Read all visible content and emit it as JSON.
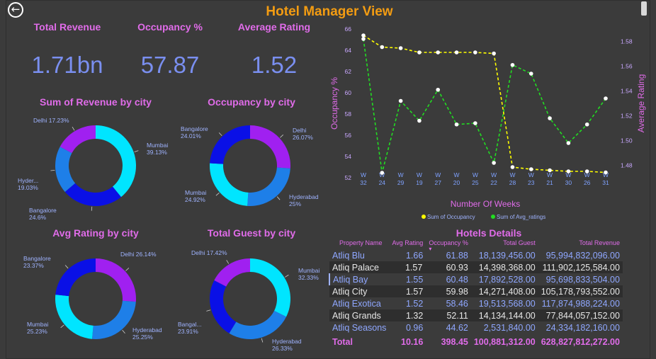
{
  "header": {
    "title": "Hotel Manager View",
    "back_icon": "back-arrow-icon"
  },
  "kpis": [
    {
      "label": "Total Revenue",
      "value": "1.71bn"
    },
    {
      "label": "Occupancy %",
      "value": "57.87"
    },
    {
      "label": "Average Rating",
      "value": "1.52"
    }
  ],
  "colors": {
    "Mumbai": "#00e5ff",
    "Delhi": "#a020f0",
    "Hyderabad": "#1e7fe8",
    "Bangalore": "#0a10e6",
    "occupancy_line": "#ffff00",
    "rating_line": "#22dd22"
  },
  "chart_data": [
    {
      "type": "pie",
      "donut": true,
      "title": "Sum of Revenue by city",
      "slices": [
        {
          "city": "Mumbai",
          "value": 39.13,
          "label_name": "Mumbai",
          "label_value": "39.13%"
        },
        {
          "city": "Bangalore",
          "value": 24.6,
          "label_name": "Bangalore",
          "label_value": "24.6%"
        },
        {
          "city": "Hyderabad",
          "value": 19.03,
          "label_name": "Hyder...",
          "label_value": "19.03%"
        },
        {
          "city": "Delhi",
          "value": 17.23,
          "label_name": "Delhi",
          "label_value": "17.23%"
        }
      ]
    },
    {
      "type": "pie",
      "donut": true,
      "title": "Occupancy by city",
      "slices": [
        {
          "city": "Delhi",
          "value": 26.07,
          "label_name": "Delhi",
          "label_value": "26.07%"
        },
        {
          "city": "Hyderabad",
          "value": 25,
          "label_name": "Hyderabad",
          "label_value": "25%"
        },
        {
          "city": "Mumbai",
          "value": 24.92,
          "label_name": "Mumbai",
          "label_value": "24.92%"
        },
        {
          "city": "Bangalore",
          "value": 24.01,
          "label_name": "Bangalore",
          "label_value": "24.01%"
        }
      ]
    },
    {
      "type": "pie",
      "donut": true,
      "title": "Avg Rating by city",
      "slices": [
        {
          "city": "Delhi",
          "value": 26.14,
          "label_name": "Delhi",
          "label_value": "26.14%"
        },
        {
          "city": "Hyderabad",
          "value": 25.25,
          "label_name": "Hyderabad",
          "label_value": "25.25%"
        },
        {
          "city": "Mumbai",
          "value": 25.23,
          "label_name": "Mumbai",
          "label_value": "25.23%"
        },
        {
          "city": "Bangalore",
          "value": 23.37,
          "label_name": "Bangalore",
          "label_value": "23.37%"
        }
      ]
    },
    {
      "type": "pie",
      "donut": true,
      "title": "Total Guest by city",
      "slices": [
        {
          "city": "Mumbai",
          "value": 32.33,
          "label_name": "Mumbai",
          "label_value": "32.33%"
        },
        {
          "city": "Hyderabad",
          "value": 26.33,
          "label_name": "Hyderabad",
          "label_value": "26.33%"
        },
        {
          "city": "Bangalore",
          "value": 23.91,
          "label_name": "Bangal...",
          "label_value": "23.91%"
        },
        {
          "city": "Delhi",
          "value": 17.42,
          "label_name": "Delhi",
          "label_value": "17.42%"
        }
      ]
    },
    {
      "type": "line",
      "xlabel": "Number Of Weeks",
      "ylabel": "Occupancy %",
      "y2label": "Average Rating",
      "categories": [
        "W 32",
        "W 24",
        "W 29",
        "W 19",
        "W 27",
        "W 20",
        "W 25",
        "W 22",
        "W 28",
        "W 23",
        "W 21",
        "W 30",
        "W 26",
        "W 31"
      ],
      "ylim": [
        52,
        66
      ],
      "yticks": [
        52,
        54,
        56,
        58,
        60,
        62,
        64,
        66
      ],
      "y2lim": [
        1.47,
        1.59
      ],
      "y2ticks": [
        1.48,
        1.5,
        1.52,
        1.54,
        1.56,
        1.58
      ],
      "series": [
        {
          "name": "Sum of Occupancy",
          "axis": "left",
          "values": [
            65.4,
            64.3,
            64.2,
            63.8,
            63.8,
            63.8,
            63.8,
            63.7,
            53.0,
            52.8,
            52.7,
            52.6,
            52.6,
            52.5
          ]
        },
        {
          "name": "Sum of Avg_ratings",
          "axis": "right",
          "values": [
            1.582,
            1.474,
            1.532,
            1.516,
            1.541,
            1.513,
            1.514,
            1.482,
            1.561,
            1.554,
            1.518,
            1.498,
            1.513,
            1.534
          ]
        }
      ],
      "legend_position": "bottom"
    },
    {
      "type": "table",
      "title": "Hotels Details",
      "columns": [
        "Property Name",
        "Avg Rating",
        "Occupancy %",
        "Total Guest",
        "Total Revenue"
      ],
      "sorted_column": "Occupancy %",
      "rows": [
        [
          "Atliq Blu",
          "1.66",
          "61.88",
          "18,139,456.00",
          "95,994,832,096.00"
        ],
        [
          "Atliq Palace",
          "1.57",
          "60.93",
          "14,398,368.00",
          "111,902,125,584.00"
        ],
        [
          "Atliq Bay",
          "1.55",
          "60.48",
          "17,892,528.00",
          "95,698,833,504.00"
        ],
        [
          "Atliq City",
          "1.57",
          "59.98",
          "14,271,408.00",
          "105,178,793,552.00"
        ],
        [
          "Atliq Exotica",
          "1.52",
          "58.46",
          "19,513,568.00",
          "117,874,988,224.00"
        ],
        [
          "Atliq Grands",
          "1.32",
          "52.11",
          "14,134,144.00",
          "77,844,057,152.00"
        ],
        [
          "Atliq Seasons",
          "0.96",
          "44.62",
          "2,531,840.00",
          "24,334,182,160.00"
        ]
      ],
      "total": [
        "Total",
        "10.16",
        "398.45",
        "100,881,312.00",
        "628,827,812,272.00"
      ]
    }
  ]
}
